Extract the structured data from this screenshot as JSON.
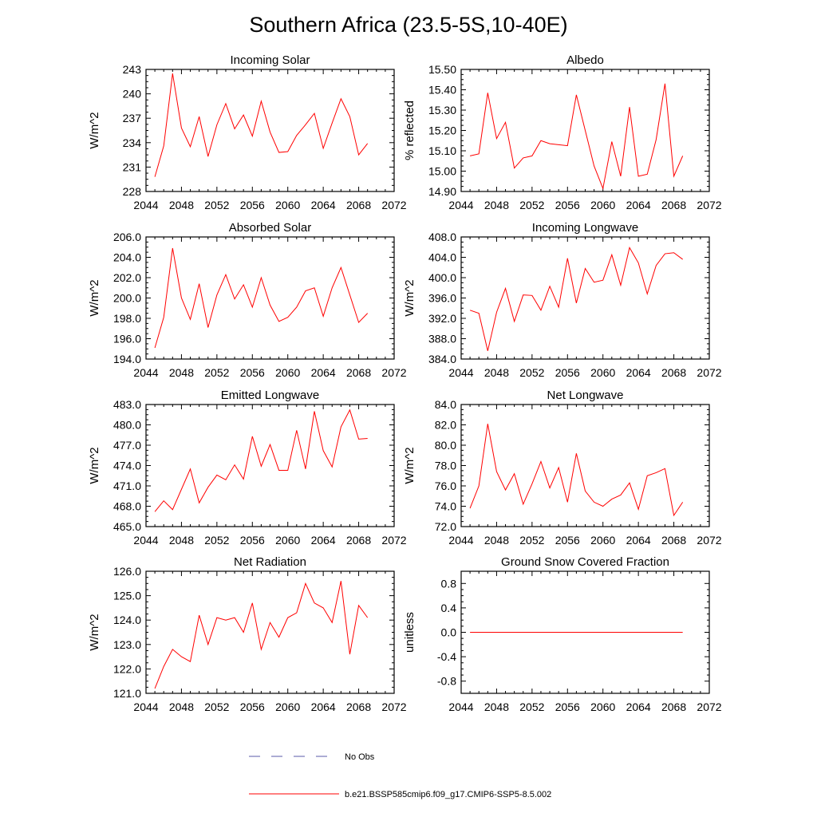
{
  "figure": {
    "title": "Southern Africa (23.5-5S,10-40E)"
  },
  "colors": {
    "series_line": "#ff0000",
    "obs_line": "#5a5aa8",
    "frame": "#000000"
  },
  "legend": {
    "obs_label": "No Obs",
    "model_label": "b.e21.BSSP585cmip6.f09_g17.CMIP6-SSP5-8.5.002"
  },
  "chart_data": [
    {
      "type": "line",
      "title": "Incoming Solar",
      "ylabel": "W/m^2",
      "xlim": [
        2044,
        2072
      ],
      "ylim": [
        228,
        243
      ],
      "xticks": [
        "2044",
        "2048",
        "2052",
        "2056",
        "2060",
        "2064",
        "2068",
        "2072"
      ],
      "yticks": [
        "228",
        "231",
        "234",
        "237",
        "240",
        "243"
      ],
      "x": [
        2045,
        2046,
        2047,
        2048,
        2049,
        2050,
        2051,
        2052,
        2053,
        2054,
        2055,
        2056,
        2057,
        2058,
        2059,
        2060,
        2061,
        2062,
        2063,
        2064,
        2065,
        2066,
        2067,
        2068,
        2069
      ],
      "series": [
        {
          "values": [
            229.8,
            233.6,
            242.5,
            235.8,
            233.5,
            237.2,
            232.3,
            236.2,
            238.8,
            235.7,
            237.4,
            234.8,
            239.1,
            235.3,
            232.8,
            232.9,
            234.9,
            236.2,
            237.6,
            233.3,
            236.4,
            239.4,
            237.2,
            232.5,
            233.9
          ]
        }
      ]
    },
    {
      "type": "line",
      "title": "Albedo",
      "ylabel": "% reflected",
      "xlim": [
        2044,
        2072
      ],
      "ylim": [
        14.9,
        15.5
      ],
      "xticks": [
        "2044",
        "2048",
        "2052",
        "2056",
        "2060",
        "2064",
        "2068",
        "2072"
      ],
      "yticks": [
        "14.90",
        "15.00",
        "15.10",
        "15.20",
        "15.30",
        "15.40",
        "15.50"
      ],
      "x": [
        2045,
        2046,
        2047,
        2048,
        2049,
        2050,
        2051,
        2052,
        2053,
        2054,
        2055,
        2056,
        2057,
        2058,
        2059,
        2060,
        2061,
        2062,
        2063,
        2064,
        2065,
        2066,
        2067,
        2068,
        2069
      ],
      "series": [
        {
          "values": [
            15.075,
            15.085,
            15.385,
            15.16,
            15.24,
            15.015,
            15.065,
            15.075,
            15.15,
            15.135,
            15.13,
            15.125,
            15.375,
            15.2,
            15.025,
            14.915,
            15.145,
            14.975,
            15.315,
            14.975,
            14.985,
            15.155,
            15.43,
            14.975,
            15.075
          ]
        }
      ]
    },
    {
      "type": "line",
      "title": "Absorbed Solar",
      "ylabel": "W/m^2",
      "xlim": [
        2044,
        2072
      ],
      "ylim": [
        194,
        206
      ],
      "xticks": [
        "2044",
        "2048",
        "2052",
        "2056",
        "2060",
        "2064",
        "2068",
        "2072"
      ],
      "yticks": [
        "194.0",
        "196.0",
        "198.0",
        "200.0",
        "202.0",
        "204.0",
        "206.0"
      ],
      "x": [
        2045,
        2046,
        2047,
        2048,
        2049,
        2050,
        2051,
        2052,
        2053,
        2054,
        2055,
        2056,
        2057,
        2058,
        2059,
        2060,
        2061,
        2062,
        2063,
        2064,
        2065,
        2066,
        2067,
        2068,
        2069
      ],
      "series": [
        {
          "values": [
            195.1,
            198.1,
            204.9,
            200.0,
            197.9,
            201.4,
            197.1,
            200.3,
            202.3,
            199.9,
            201.3,
            199.1,
            202.0,
            199.3,
            197.7,
            198.1,
            199.1,
            200.7,
            201.0,
            198.2,
            201.0,
            203.0,
            200.3,
            197.6,
            198.5
          ]
        }
      ]
    },
    {
      "type": "line",
      "title": "Incoming Longwave",
      "ylabel": "W/m^2",
      "xlim": [
        2044,
        2072
      ],
      "ylim": [
        384,
        408
      ],
      "xticks": [
        "2044",
        "2048",
        "2052",
        "2056",
        "2060",
        "2064",
        "2068",
        "2072"
      ],
      "yticks": [
        "384.0",
        "388.0",
        "392.0",
        "396.0",
        "400.0",
        "404.0",
        "408.0"
      ],
      "x": [
        2045,
        2046,
        2047,
        2048,
        2049,
        2050,
        2051,
        2052,
        2053,
        2054,
        2055,
        2056,
        2057,
        2058,
        2059,
        2060,
        2061,
        2062,
        2063,
        2064,
        2065,
        2066,
        2067,
        2068,
        2069
      ],
      "series": [
        {
          "values": [
            393.6,
            393.0,
            385.6,
            393.2,
            397.9,
            391.4,
            396.6,
            396.5,
            393.6,
            398.3,
            394.2,
            403.8,
            395.0,
            401.8,
            399.1,
            399.5,
            404.5,
            398.5,
            405.9,
            402.9,
            396.8,
            402.4,
            404.7,
            404.9,
            403.6
          ]
        }
      ]
    },
    {
      "type": "line",
      "title": "Emitted Longwave",
      "ylabel": "W/m^2",
      "xlim": [
        2044,
        2072
      ],
      "ylim": [
        465,
        483
      ],
      "xticks": [
        "2044",
        "2048",
        "2052",
        "2056",
        "2060",
        "2064",
        "2068",
        "2072"
      ],
      "yticks": [
        "465.0",
        "468.0",
        "471.0",
        "474.0",
        "477.0",
        "480.0",
        "483.0"
      ],
      "x": [
        2045,
        2046,
        2047,
        2048,
        2049,
        2050,
        2051,
        2052,
        2053,
        2054,
        2055,
        2056,
        2057,
        2058,
        2059,
        2060,
        2061,
        2062,
        2063,
        2064,
        2065,
        2066,
        2067,
        2068,
        2069
      ],
      "series": [
        {
          "values": [
            467.2,
            468.8,
            467.5,
            470.5,
            473.5,
            468.5,
            470.8,
            472.6,
            471.9,
            474.1,
            472.0,
            478.3,
            473.9,
            477.1,
            473.3,
            473.3,
            479.2,
            473.5,
            482.0,
            476.2,
            473.8,
            479.7,
            482.2,
            477.9,
            478.0
          ]
        }
      ]
    },
    {
      "type": "line",
      "title": "Net Longwave",
      "ylabel": "W/m^2",
      "xlim": [
        2044,
        2072
      ],
      "ylim": [
        72,
        84
      ],
      "xticks": [
        "2044",
        "2048",
        "2052",
        "2056",
        "2060",
        "2064",
        "2068",
        "2072"
      ],
      "yticks": [
        "72.0",
        "74.0",
        "76.0",
        "78.0",
        "80.0",
        "82.0",
        "84.0"
      ],
      "x": [
        2045,
        2046,
        2047,
        2048,
        2049,
        2050,
        2051,
        2052,
        2053,
        2054,
        2055,
        2056,
        2057,
        2058,
        2059,
        2060,
        2061,
        2062,
        2063,
        2064,
        2065,
        2066,
        2067,
        2068,
        2069
      ],
      "series": [
        {
          "values": [
            73.8,
            76.0,
            82.1,
            77.4,
            75.6,
            77.2,
            74.2,
            76.2,
            78.4,
            75.8,
            77.8,
            74.4,
            79.2,
            75.5,
            74.4,
            74.0,
            74.7,
            75.1,
            76.3,
            73.7,
            77.0,
            77.3,
            77.7,
            73.1,
            74.4
          ]
        }
      ]
    },
    {
      "type": "line",
      "title": "Net Radiation",
      "ylabel": "W/m^2",
      "xlim": [
        2044,
        2072
      ],
      "ylim": [
        121,
        126
      ],
      "xticks": [
        "2044",
        "2048",
        "2052",
        "2056",
        "2060",
        "2064",
        "2068",
        "2072"
      ],
      "yticks": [
        "121.0",
        "122.0",
        "123.0",
        "124.0",
        "125.0",
        "126.0"
      ],
      "x": [
        2045,
        2046,
        2047,
        2048,
        2049,
        2050,
        2051,
        2052,
        2053,
        2054,
        2055,
        2056,
        2057,
        2058,
        2059,
        2060,
        2061,
        2062,
        2063,
        2064,
        2065,
        2066,
        2067,
        2068,
        2069
      ],
      "series": [
        {
          "values": [
            121.2,
            122.1,
            122.8,
            122.5,
            122.3,
            124.2,
            123.0,
            124.1,
            124.0,
            124.1,
            123.5,
            124.7,
            122.8,
            123.9,
            123.3,
            124.1,
            124.3,
            125.5,
            124.7,
            124.5,
            123.9,
            125.6,
            122.6,
            124.6,
            124.1
          ]
        }
      ]
    },
    {
      "type": "line",
      "title": "Ground Snow Covered Fraction",
      "ylabel": "unitless",
      "xlim": [
        2044,
        2072
      ],
      "ylim": [
        -1.0,
        1.0
      ],
      "xticks": [
        "2044",
        "2048",
        "2052",
        "2056",
        "2060",
        "2064",
        "2068",
        "2072"
      ],
      "yticks": [
        "-0.8",
        "-0.4",
        "0.0",
        "0.4",
        "0.8"
      ],
      "ytick_values": [
        -0.8,
        -0.4,
        0.0,
        0.4,
        0.8
      ],
      "x": [
        2045,
        2046,
        2047,
        2048,
        2049,
        2050,
        2051,
        2052,
        2053,
        2054,
        2055,
        2056,
        2057,
        2058,
        2059,
        2060,
        2061,
        2062,
        2063,
        2064,
        2065,
        2066,
        2067,
        2068,
        2069
      ],
      "series": [
        {
          "values": [
            0,
            0,
            0,
            0,
            0,
            0,
            0,
            0,
            0,
            0,
            0,
            0,
            0,
            0,
            0,
            0,
            0,
            0,
            0,
            0,
            0,
            0,
            0,
            0,
            0
          ]
        }
      ]
    }
  ]
}
